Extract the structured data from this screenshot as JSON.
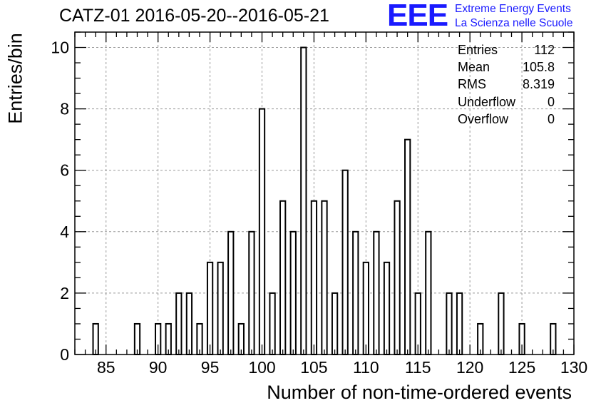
{
  "title": "CATZ-01 2016-05-20--2016-05-21",
  "logo": {
    "mark": "EEE",
    "line1": "Extreme Energy Events",
    "line2": "La Scienza nelle Scuole",
    "color": "#1a1aff"
  },
  "stats": [
    {
      "label": "Entries",
      "value": "112"
    },
    {
      "label": "Mean",
      "value": "105.8"
    },
    {
      "label": "RMS",
      "value": "8.319"
    },
    {
      "label": "Underflow",
      "value": "0"
    },
    {
      "label": "Overflow",
      "value": "0"
    }
  ],
  "chart_data": {
    "type": "bar",
    "title": "CATZ-01 2016-05-20--2016-05-21",
    "xlabel": "Number of non-time-ordered events",
    "ylabel": "Entries/bin",
    "xlim": [
      82,
      130
    ],
    "ylim": [
      0,
      10.5
    ],
    "xticks": [
      85,
      90,
      95,
      100,
      105,
      110,
      115,
      120,
      125,
      130
    ],
    "yticks": [
      0,
      2,
      4,
      6,
      8,
      10
    ],
    "grid": true,
    "bin_width": 1,
    "bar_width_fraction": 0.5,
    "x": [
      84,
      88,
      90,
      91,
      92,
      93,
      94,
      95,
      96,
      97,
      98,
      99,
      100,
      101,
      102,
      103,
      104,
      105,
      106,
      107,
      108,
      109,
      110,
      111,
      112,
      113,
      114,
      115,
      116,
      118,
      119,
      121,
      123,
      125,
      128
    ],
    "values": [
      1,
      1,
      1,
      1,
      2,
      2,
      1,
      3,
      3,
      4,
      1,
      4,
      8,
      2,
      5,
      4,
      10,
      5,
      5,
      2,
      6,
      4,
      3,
      4,
      3,
      5,
      7,
      2,
      4,
      2,
      2,
      1,
      2,
      1,
      1
    ]
  }
}
